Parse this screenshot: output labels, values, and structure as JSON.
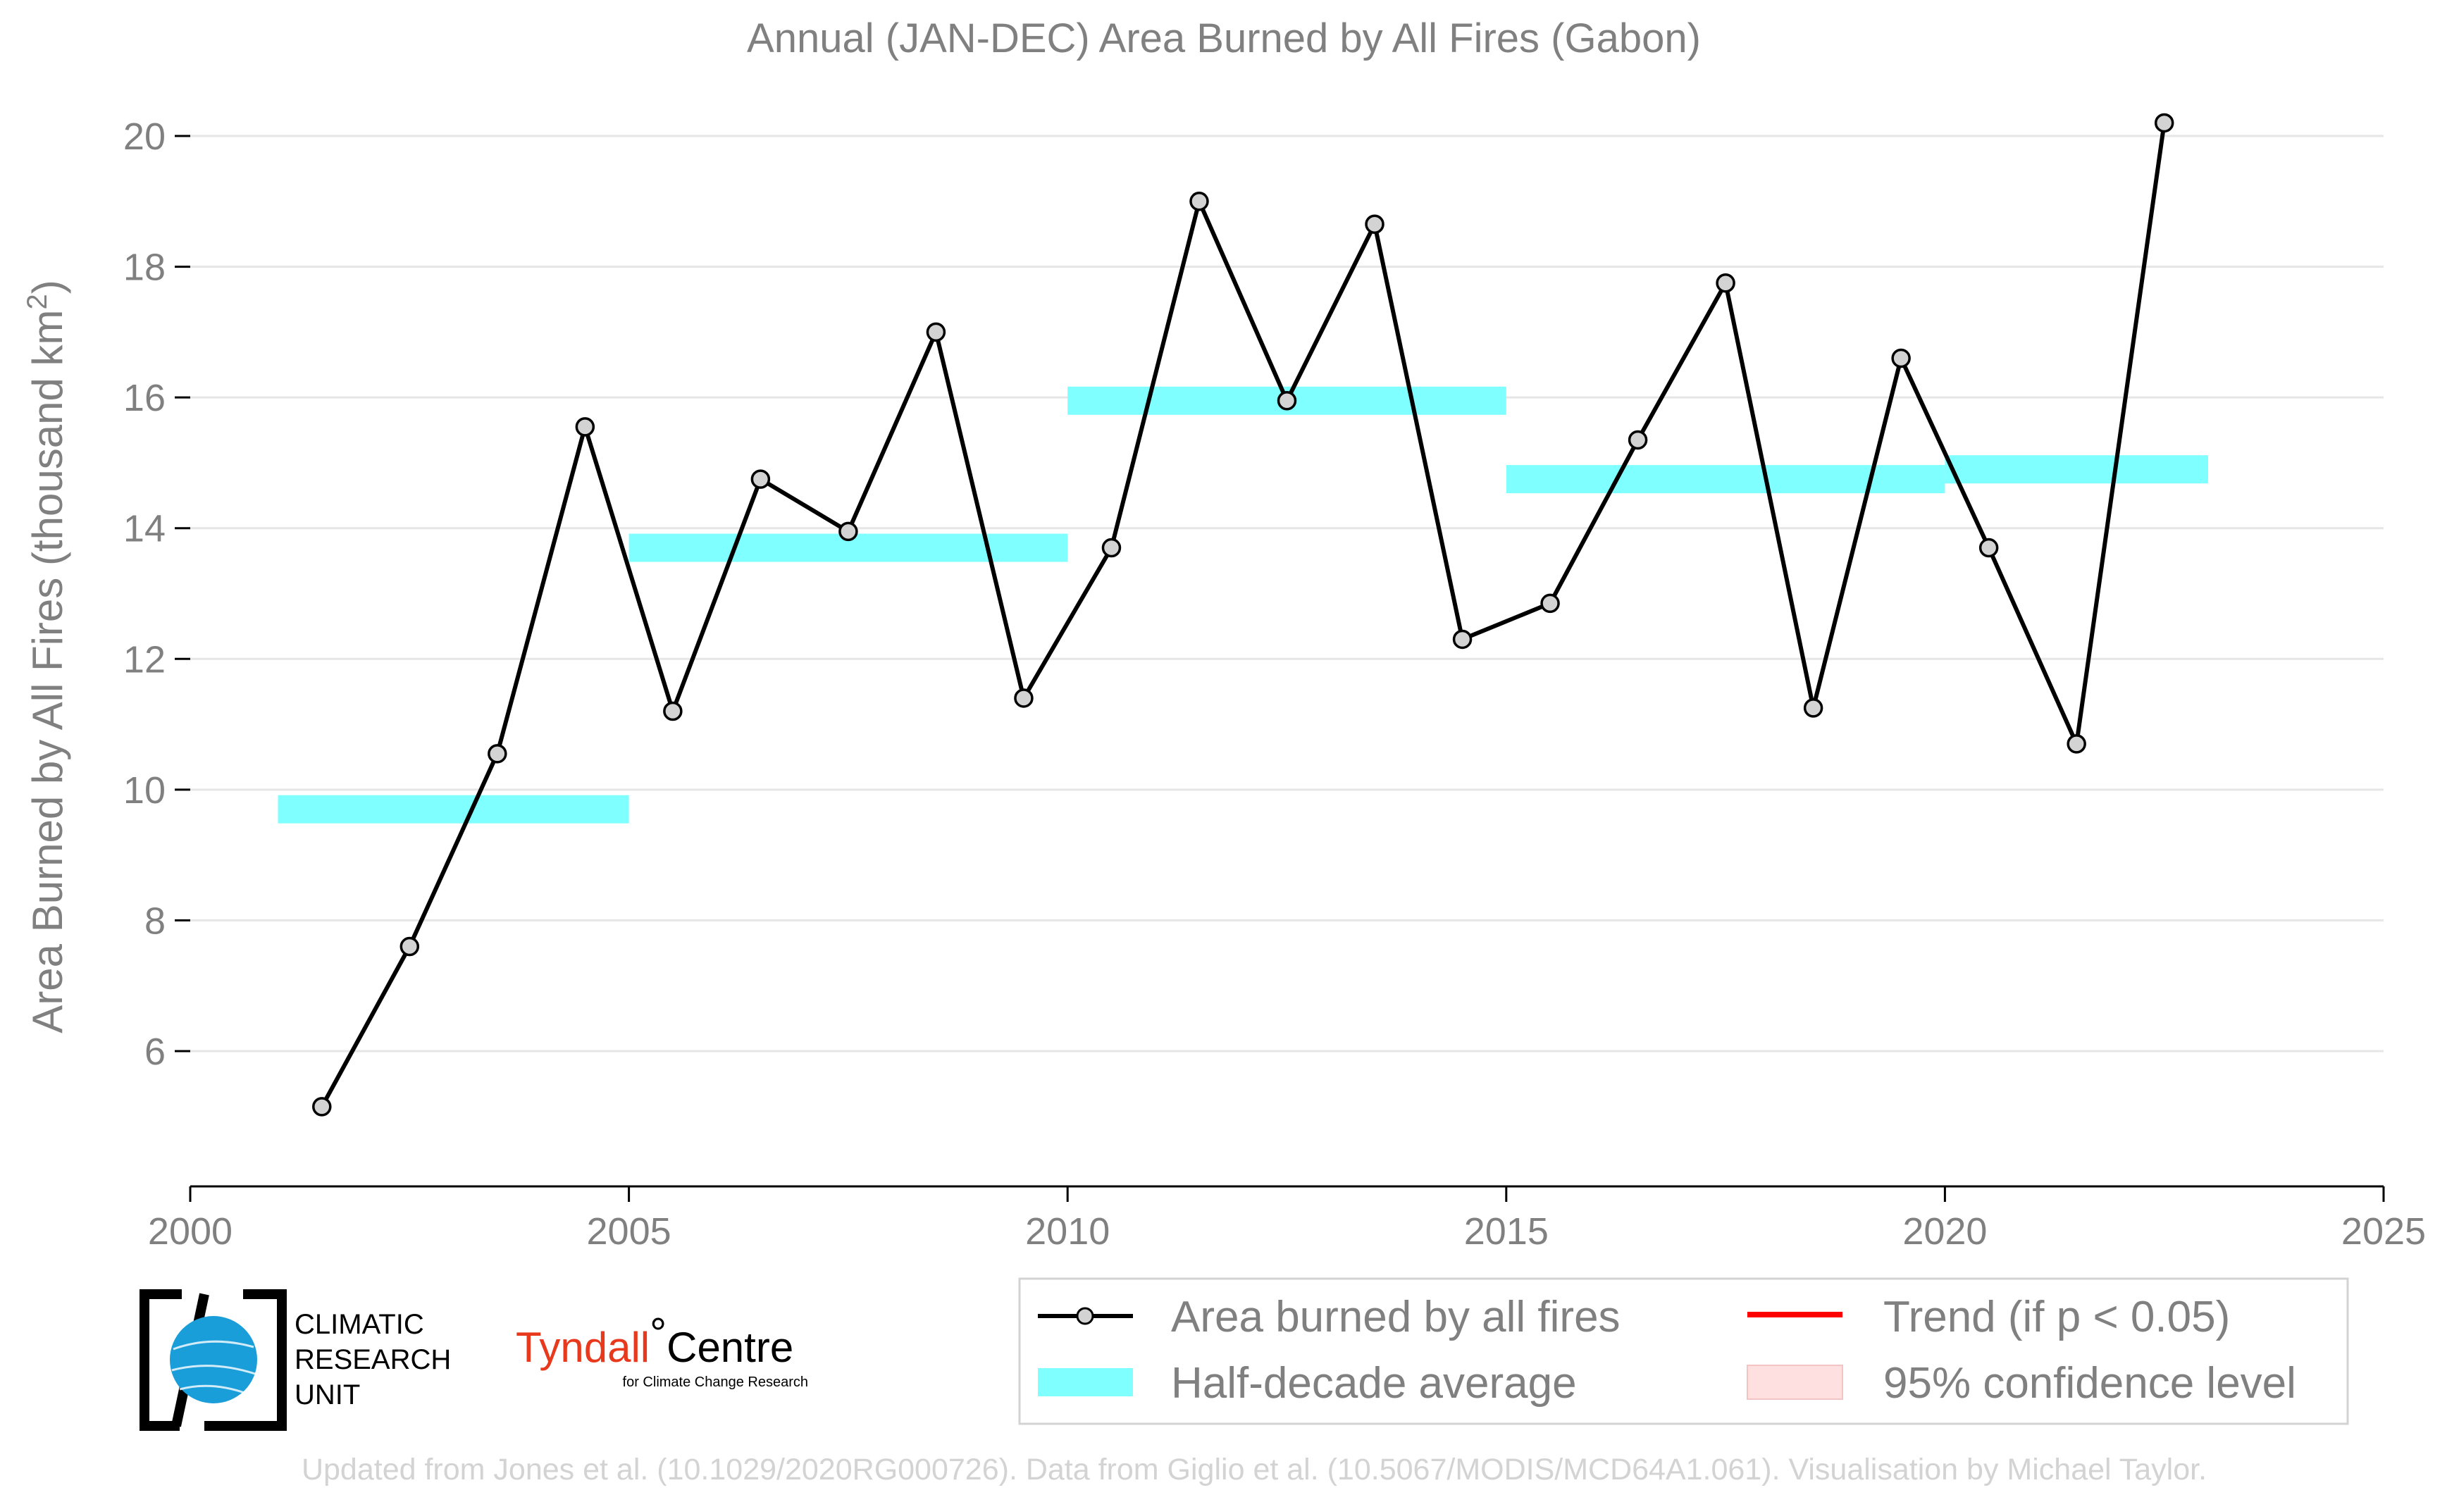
{
  "chart_data": {
    "type": "line",
    "title": "Annual (JAN-DEC) Area Burned by All Fires (Gabon)",
    "ylabel": "Area Burned by All Fires (thousand km",
    "ylabel_sup": "2",
    "ylabel_end": ")",
    "xlim": [
      2000,
      2025
    ],
    "ylim": [
      4.0,
      21.0
    ],
    "x_ticks": [
      2000,
      2005,
      2010,
      2015,
      2020,
      2025
    ],
    "y_ticks": [
      6,
      8,
      10,
      12,
      14,
      16,
      18,
      20
    ],
    "grid": "horizontal",
    "series": [
      {
        "name": "Area burned by all fires",
        "color": "#000000",
        "marker_fill": "#d3d3d3",
        "x": [
          2001.5,
          2002.5,
          2003.5,
          2004.5,
          2005.5,
          2006.5,
          2007.5,
          2008.5,
          2009.5,
          2010.5,
          2011.5,
          2012.5,
          2013.5,
          2014.5,
          2015.5,
          2016.5,
          2017.5,
          2018.5,
          2019.5,
          2020.5,
          2021.5,
          2022.5
        ],
        "values": [
          5.15,
          7.6,
          10.55,
          15.55,
          11.2,
          14.75,
          13.95,
          17.0,
          11.4,
          13.7,
          19.0,
          15.95,
          18.65,
          12.3,
          12.85,
          15.35,
          17.75,
          11.25,
          16.6,
          13.7,
          10.7,
          20.2
        ]
      }
    ],
    "half_decade_average": {
      "name": "Half-decade average",
      "color": "#7fffff",
      "segments": [
        {
          "x0": 2001.0,
          "x1": 2005.0,
          "value": 9.7
        },
        {
          "x0": 2005.0,
          "x1": 2010.0,
          "value": 13.7
        },
        {
          "x0": 2010.0,
          "x1": 2015.0,
          "value": 15.95
        },
        {
          "x0": 2015.0,
          "x1": 2020.0,
          "value": 14.75
        },
        {
          "x0": 2020.0,
          "x1": 2023.0,
          "value": 14.9
        }
      ]
    },
    "legend": {
      "position": "bottom-right",
      "items": [
        {
          "label": "Area burned by all fires",
          "kind": "line-marker",
          "color": "#000000"
        },
        {
          "label": "Trend (if p < 0.05)",
          "kind": "line",
          "color": "#ff0000"
        },
        {
          "label": "Half-decade average",
          "kind": "patch",
          "color": "#7fffff"
        },
        {
          "label": "95% confidence level",
          "kind": "patch",
          "color": "#ffe0e0"
        }
      ]
    }
  },
  "logos": {
    "cru_line1": "CLIMATIC",
    "cru_line2": "RESEARCH",
    "cru_line3": "UNIT",
    "tyndall_part1": "Tyndall",
    "tyndall_degree": "°",
    "tyndall_part2": "Centre",
    "tyndall_sub": "for Climate Change Research"
  },
  "credit": "Updated from Jones et al. (10.1029/2020RG000726). Data from Giglio et al. (10.5067/MODIS/MCD64A1.061). Visualisation by Michael Taylor."
}
